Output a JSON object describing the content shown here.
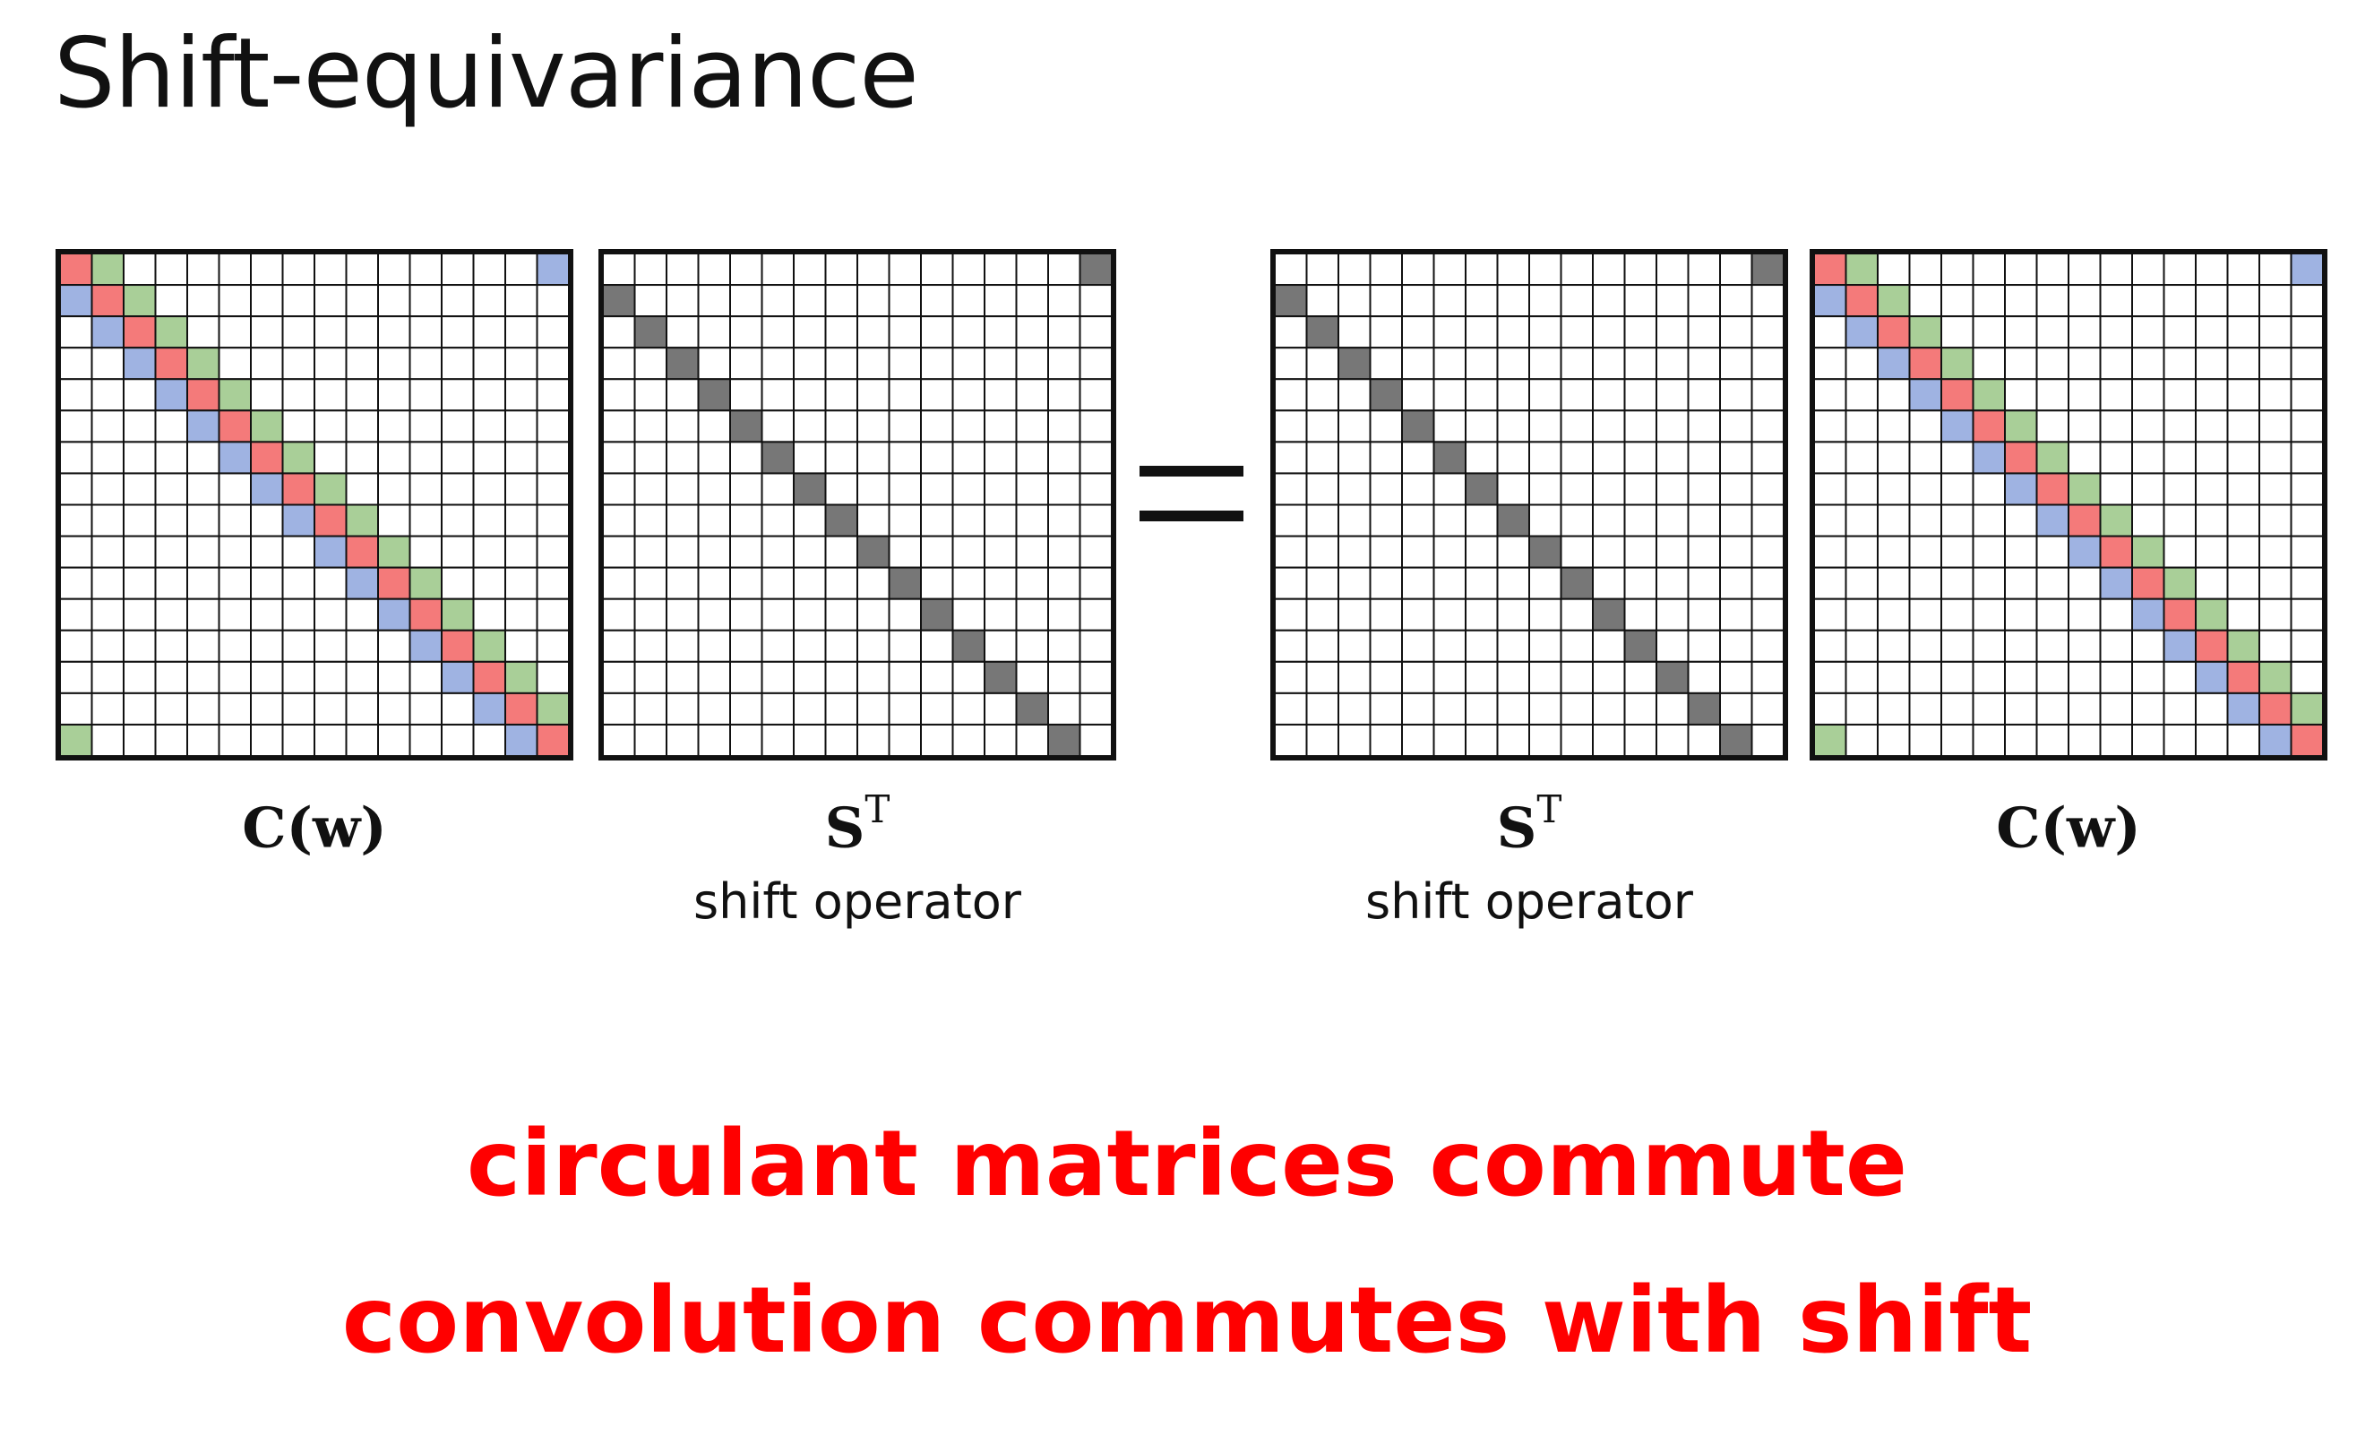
{
  "title": "Shift-equivariance",
  "matrix_size": 16,
  "colors": {
    "red": "#f47a7a",
    "green": "#a9cf98",
    "blue": "#9fb3e2",
    "shift": "#777777",
    "grid": "#111111",
    "emphasis": "#ff0000"
  },
  "matrices": [
    {
      "kind": "circulant",
      "symbol": "C(w)",
      "superscript": "",
      "caption": ""
    },
    {
      "kind": "shift",
      "symbol": "S",
      "superscript": "T",
      "caption": "shift operator"
    },
    {
      "kind": "shift",
      "symbol": "S",
      "superscript": "T",
      "caption": "shift operator"
    },
    {
      "kind": "circulant",
      "symbol": "C(w)",
      "superscript": "",
      "caption": ""
    }
  ],
  "operator": "=",
  "statements": [
    "circulant matrices commute",
    "convolution commutes with shift"
  ]
}
